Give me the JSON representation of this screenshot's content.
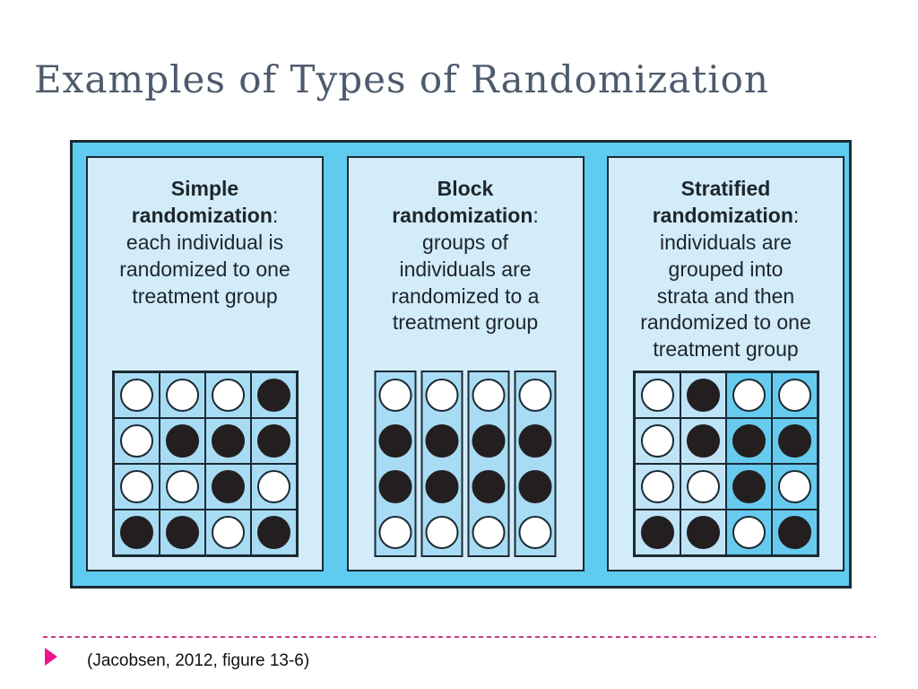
{
  "slide": {
    "title": "Examples of Types of Randomization"
  },
  "figure": {
    "panels": [
      {
        "name": "simple-randomization",
        "heading": "Simple\nrandomization",
        "heading_colon": ":",
        "description": "\neach individual is\nrandomized to one\ntreatment group",
        "grid": {
          "style": "cells",
          "column_bg": [
            "#a8dcf4",
            "#a8dcf4",
            "#a8dcf4",
            "#a8dcf4"
          ],
          "rows": [
            [
              "w",
              "w",
              "w",
              "b"
            ],
            [
              "w",
              "b",
              "b",
              "b"
            ],
            [
              "w",
              "w",
              "b",
              "w"
            ],
            [
              "b",
              "b",
              "w",
              "b"
            ]
          ]
        }
      },
      {
        "name": "block-randomization",
        "heading": "Block\nrandomization",
        "heading_colon": ":",
        "description": "\ngroups of\nindividuals are\nrandomized to a\ntreatment group",
        "grid": {
          "style": "columns",
          "column_bg": [
            "#a8dcf4",
            "#a8dcf4",
            "#a8dcf4",
            "#a8dcf4"
          ],
          "rows": [
            [
              "w",
              "w",
              "w",
              "w"
            ],
            [
              "b",
              "b",
              "b",
              "b"
            ],
            [
              "b",
              "b",
              "b",
              "b"
            ],
            [
              "w",
              "w",
              "w",
              "w"
            ]
          ]
        }
      },
      {
        "name": "stratified-randomization",
        "heading": "Stratified\nrandomization",
        "heading_colon": ":",
        "description": "\nindividuals are\ngrouped into\nstrata and then\nrandomized to one\ntreatment group",
        "grid": {
          "style": "cells",
          "column_bg": [
            "#bfe3f7",
            "#bfe3f7",
            "#66cbee",
            "#66cbee"
          ],
          "rows": [
            [
              "w",
              "b",
              "w",
              "w"
            ],
            [
              "w",
              "b",
              "b",
              "b"
            ],
            [
              "w",
              "w",
              "b",
              "w"
            ],
            [
              "b",
              "b",
              "w",
              "b"
            ]
          ]
        }
      }
    ]
  },
  "footer": {
    "citation": "(Jacobsen, 2012, figure 13-6)"
  },
  "colors": {
    "title-color": "#4e5b6d",
    "line": "#1c2a33",
    "outer-bg": "#5fcbee",
    "panel-bg": "#d2ecf9",
    "ink": "#1d262b",
    "dot-white": "#ffffff",
    "dot-black": "#231f20",
    "divider-pink": "#d23c8a",
    "arrow-pink": "#ec168c"
  }
}
